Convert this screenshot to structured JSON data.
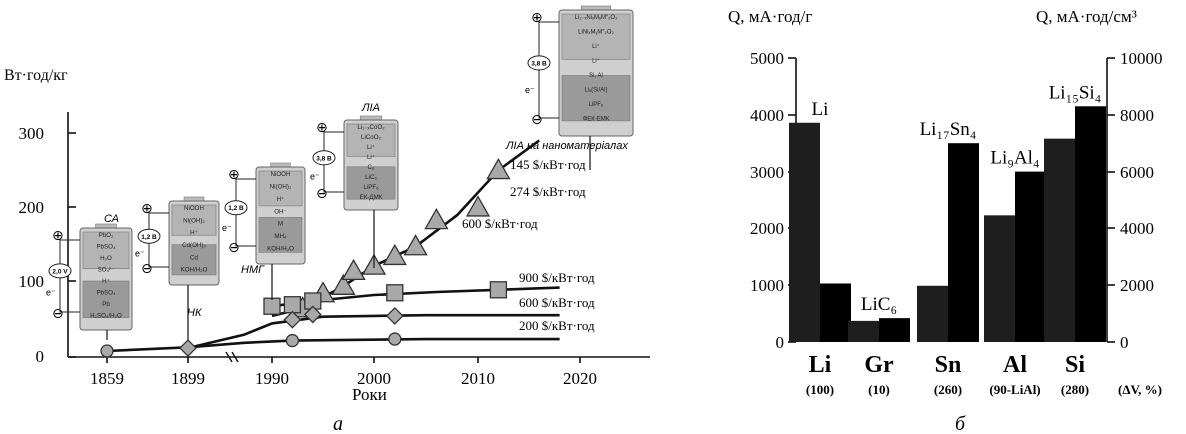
{
  "panel_labels": {
    "a": "а",
    "b": "б"
  },
  "chart_data": [
    {
      "type": "line",
      "ylabel": "Вт·год/кг",
      "xlabel": "Роки",
      "ylim": [
        0,
        300
      ],
      "y_ticks": [
        "0",
        "100",
        "200",
        "300"
      ],
      "x_tick_labels": [
        "1859",
        "1899",
        "1990",
        "2000",
        "2010",
        "2020"
      ],
      "x_ticks": [
        1859,
        1899,
        1990,
        2000,
        2010,
        2020
      ],
      "axis_note": "break between 1899 and 1990",
      "series": [
        {
          "label": "145 $/кВт·год",
          "marker": "triangle",
          "x": [
            1993,
            1995,
            1997,
            1998,
            2000,
            2002,
            2004,
            2006,
            2010,
            2012
          ],
          "y": [
            65,
            85,
            95,
            115,
            122,
            135,
            148,
            183,
            200,
            250
          ]
        },
        {
          "label": "274 $/кВт·год",
          "marker": "none",
          "x": [],
          "y": []
        },
        {
          "label": "600 $/кВт·год",
          "marker": "none",
          "x": [],
          "y": []
        },
        {
          "label": "900 $/кВт·год",
          "marker": "square",
          "x": [
            1990,
            1992,
            1994,
            2002,
            2012
          ],
          "y": [
            68,
            70,
            75,
            86,
            90
          ]
        },
        {
          "label": "600 $/кВт·год",
          "marker": "diamond",
          "x": [
            1899,
            1992,
            1994,
            2002
          ],
          "y": [
            12,
            50,
            57,
            55
          ]
        },
        {
          "label": "200 $/кВт·год",
          "marker": "circle",
          "x": [
            1859,
            1992,
            2002
          ],
          "y": [
            8,
            22,
            24
          ]
        }
      ],
      "annotations": [
        "СА",
        "НК",
        "НМГ",
        "ЛІА",
        "ЛІА на наноматеріалах"
      ],
      "cell_voltages": [
        "2,0 V",
        "1,2 В",
        "1,2 В",
        "3,8 В",
        "3,8 В"
      ],
      "cell_texts": [
        [
          "PbO₂",
          "PbSO₄",
          "H₂O",
          "SO₄²⁻",
          "H⁺",
          "PbSO₄",
          "Pb",
          "H₂SO₄/H₂O"
        ],
        [
          "NiOOH",
          "Ni(OH)₂",
          "H⁺",
          "Cd(OH)₂",
          "Cd",
          "KOH/H₂O"
        ],
        [
          "NiOOH",
          "Ni(OH)₂",
          "H⁺",
          "OH⁻",
          "M",
          "MH₄",
          "KOH/H₂O"
        ],
        [
          "Li₁₋ₓCoO₂",
          "LiCoO₂",
          "Li⁺",
          "Li⁺",
          "C₆",
          "LiC₆",
          "LiPF₆",
          "ЕК-ДМК"
        ],
        [
          "Li₁₋ₓNiₓMᵧM″₂O₂",
          "LiNiₓMᵧM″₂O₂",
          "Li⁺",
          "Li⁺",
          "Si, Al",
          "Liₓ(Si/Al)",
          "LiPF₆",
          "ФЕК-ЕМК"
        ]
      ],
      "electrode_signs": [
        "⊕",
        "⊖"
      ],
      "electron_label": "e⁻"
    },
    {
      "type": "bar",
      "left_ylabel": "Q, мА·год/г",
      "right_ylabel": "Q, мА·год/см³",
      "left_ylim": [
        0,
        5000
      ],
      "right_ylim": [
        0,
        10000
      ],
      "left_ticks": [
        "0",
        "1000",
        "2000",
        "3000",
        "4000",
        "5000"
      ],
      "right_ticks": [
        "0",
        "2000",
        "4000",
        "6000",
        "8000",
        "10000"
      ],
      "categories": [
        "Li",
        "Gr",
        "Sn",
        "Al",
        "Si"
      ],
      "volume_change": [
        "(100)",
        "(10)",
        "(260)",
        "(90-LiAl)",
        "(280)"
      ],
      "volume_change_label": "(ΔV, %)",
      "series": [
        {
          "axis": "left",
          "values": [
            3860,
            372,
            990,
            2230,
            3580
          ]
        },
        {
          "axis": "right",
          "values": [
            2060,
            840,
            7000,
            6000,
            8300
          ]
        }
      ],
      "bar_labels": [
        "Li",
        "LiC₆",
        "Li₁₇Sn₄",
        "Li₉Al₄",
        "Li₁₅Si₄"
      ]
    }
  ]
}
